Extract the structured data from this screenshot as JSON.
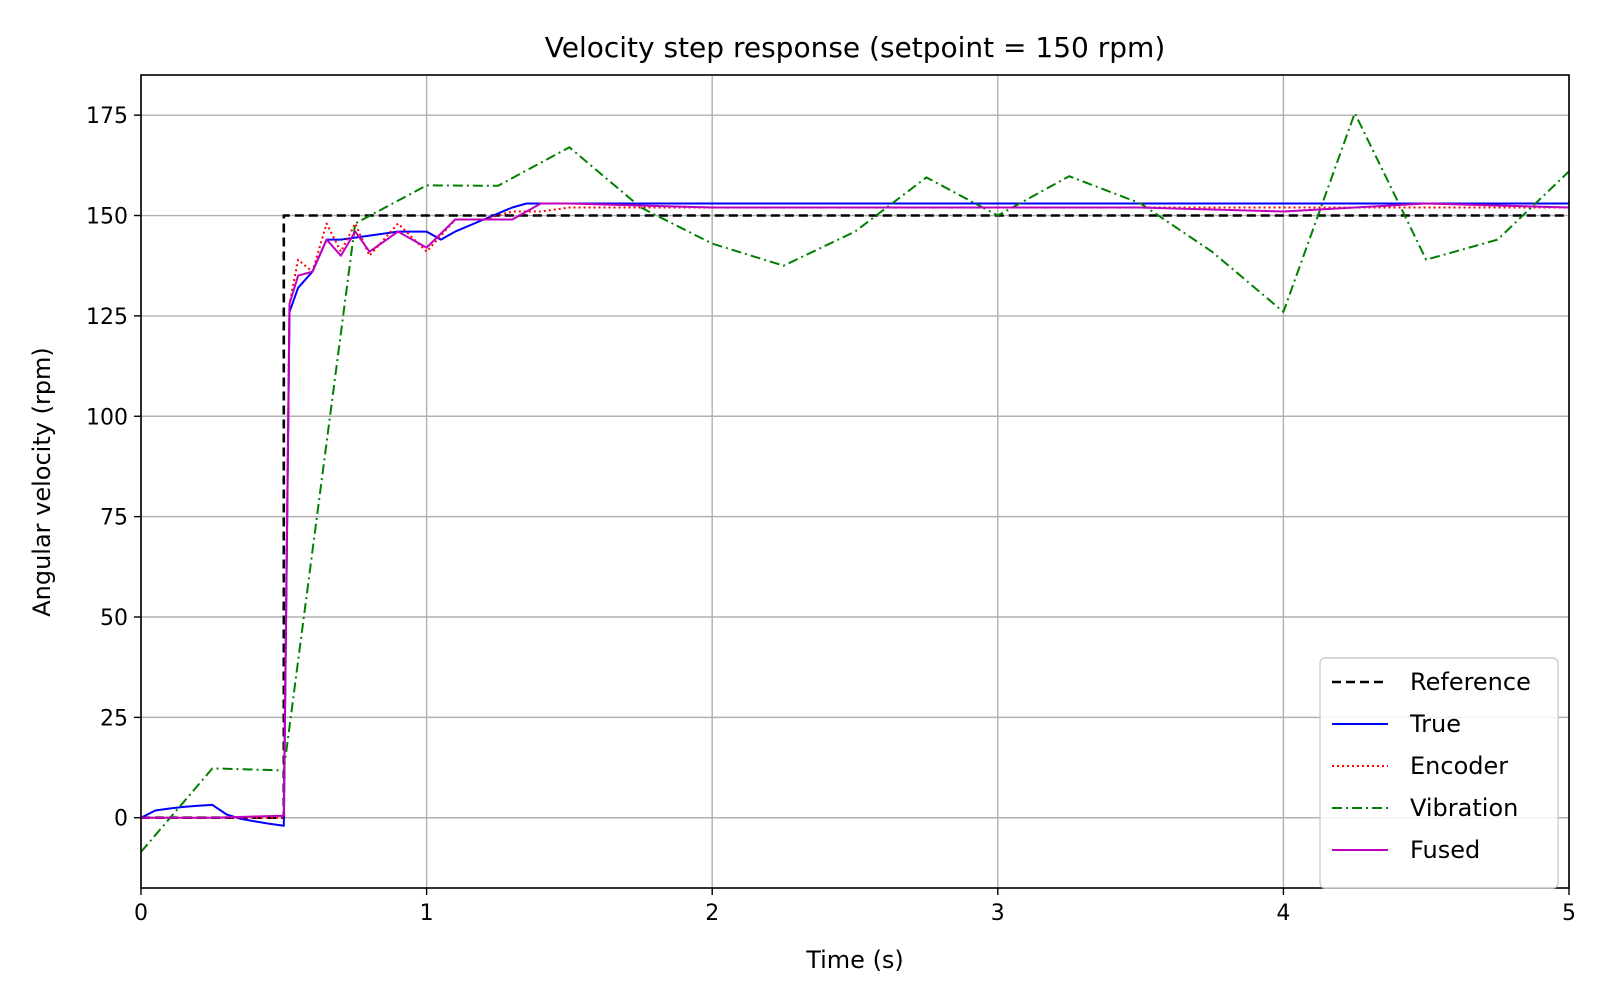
{
  "chart_data": {
    "type": "line",
    "title": "Velocity step response (setpoint = 150 rpm)",
    "xlabel": "Time (s)",
    "ylabel": "Angular velocity (rpm)",
    "xlim": [
      0,
      5
    ],
    "ylim": [
      -17.5,
      185
    ],
    "xticks": [
      0,
      1,
      2,
      3,
      4,
      5
    ],
    "yticks": [
      0,
      25,
      50,
      75,
      100,
      125,
      150,
      175
    ],
    "grid": true,
    "legend_position": "lower right",
    "series": [
      {
        "name": "Reference",
        "color": "#000000",
        "style": "dashed",
        "x": [
          0,
          0.5,
          0.5,
          5
        ],
        "y": [
          0,
          0,
          150,
          150
        ]
      },
      {
        "name": "True",
        "color": "#0000ff",
        "style": "solid",
        "x": [
          0,
          0.05,
          0.1,
          0.15,
          0.2,
          0.25,
          0.3,
          0.35,
          0.4,
          0.45,
          0.5,
          0.52,
          0.55,
          0.6,
          0.65,
          0.7,
          0.8,
          0.9,
          1.0,
          1.05,
          1.1,
          1.2,
          1.3,
          1.35,
          1.5,
          2.0,
          2.5,
          3.0,
          3.5,
          4.0,
          4.5,
          5.0
        ],
        "y": [
          0,
          1.8,
          2.3,
          2.7,
          3.0,
          3.2,
          0.8,
          -0.3,
          -0.9,
          -1.5,
          -2.0,
          126,
          132,
          136,
          144,
          144,
          145,
          146,
          146,
          144,
          146,
          149,
          152,
          153,
          153,
          153,
          153,
          153,
          153,
          153,
          153,
          153
        ]
      },
      {
        "name": "Encoder",
        "color": "#ff0000",
        "style": "dotted",
        "x": [
          0,
          0.5,
          0.52,
          0.55,
          0.6,
          0.65,
          0.7,
          0.75,
          0.8,
          0.9,
          1.0,
          1.1,
          1.2,
          1.3,
          1.4,
          1.5,
          2.0,
          2.5,
          3.0,
          3.5,
          4.0,
          4.5,
          5.0
        ],
        "y": [
          0,
          0,
          128,
          139,
          136,
          148,
          141,
          148,
          140,
          148,
          141,
          149,
          149,
          151,
          151,
          152,
          152,
          152,
          152,
          152,
          152,
          152,
          152
        ]
      },
      {
        "name": "Vibration",
        "color": "#008000",
        "style": "dashdot",
        "x": [
          0,
          0.25,
          0.5,
          0.75,
          1.0,
          1.25,
          1.5,
          1.75,
          2.0,
          2.25,
          2.5,
          2.75,
          3.0,
          3.25,
          3.5,
          3.75,
          4.0,
          4.25,
          4.5,
          4.75,
          5.0
        ],
        "y": [
          -8.5,
          12.3,
          11.8,
          148,
          157.5,
          157.4,
          167,
          152,
          143,
          137.5,
          146,
          159.5,
          150,
          159.8,
          153,
          141,
          126,
          175.5,
          139,
          144,
          161
        ]
      },
      {
        "name": "Fused",
        "color": "#bf00bf",
        "style": "solid",
        "x": [
          0,
          0.25,
          0.5,
          0.52,
          0.55,
          0.6,
          0.65,
          0.7,
          0.75,
          0.8,
          0.9,
          1.0,
          1.1,
          1.2,
          1.3,
          1.35,
          1.4,
          1.5,
          2.0,
          2.5,
          3.0,
          3.5,
          4.0,
          4.25,
          4.5,
          5.0
        ],
        "y": [
          0,
          0,
          0.5,
          128,
          135,
          136,
          144,
          140,
          146,
          141,
          146,
          142,
          149,
          149,
          149,
          151,
          153,
          153,
          152,
          152,
          152,
          152,
          151,
          152,
          153,
          152
        ]
      }
    ]
  }
}
